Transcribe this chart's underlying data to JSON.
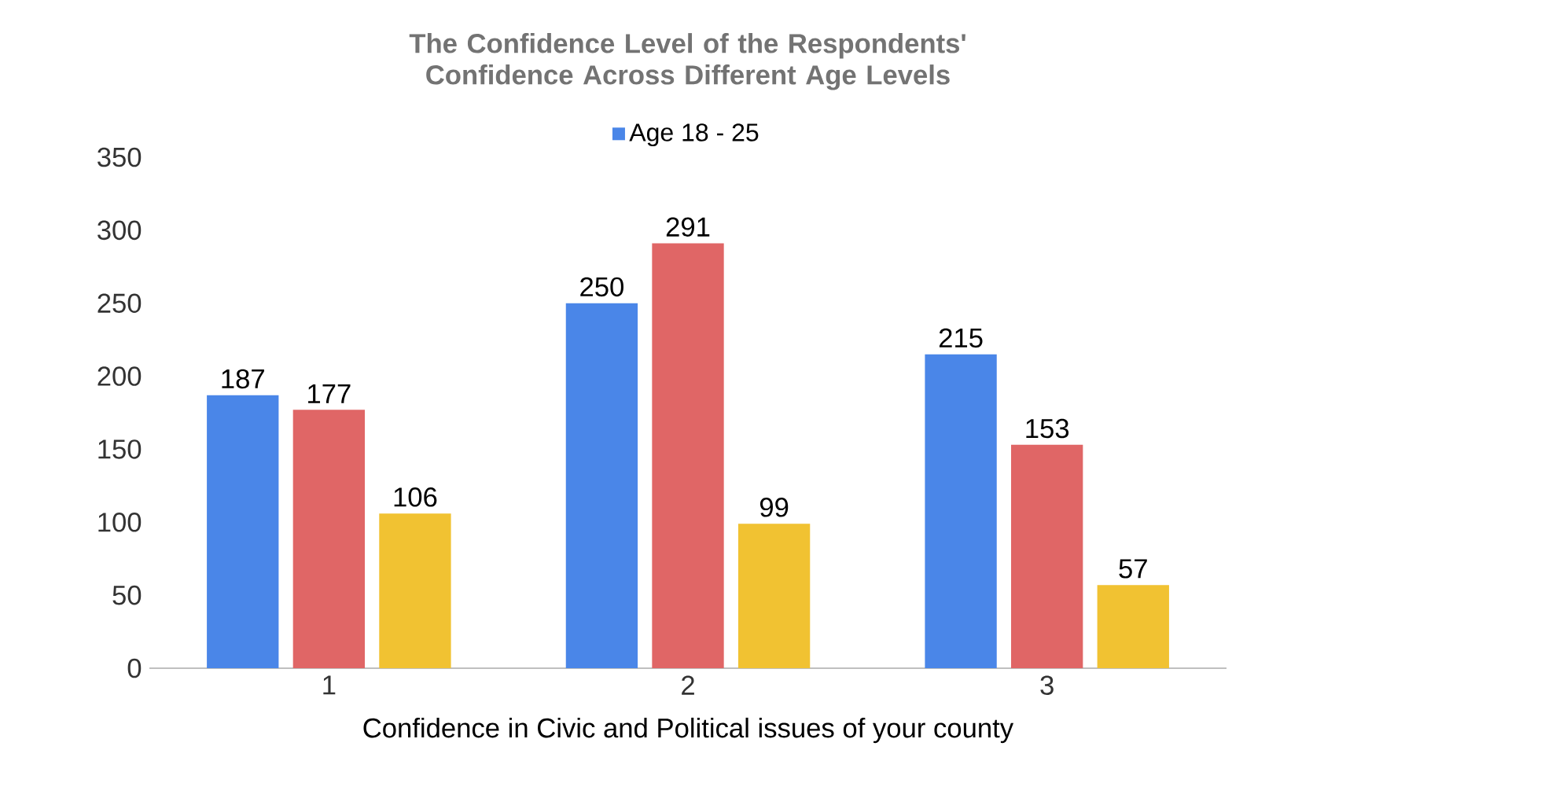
{
  "chart_data": {
    "type": "bar",
    "title": "The Confidence Level of the Respondents' Confidence Across Different Age Levels",
    "xlabel": "Confidence in Civic and Political issues of your county",
    "categories": [
      "1",
      "2",
      "3"
    ],
    "series": [
      {
        "name": "Age 18 - 25",
        "color": "#4a86e8",
        "values": [
          187,
          250,
          215
        ]
      },
      {
        "color": "#e06666",
        "values": [
          177,
          291,
          153
        ]
      },
      {
        "color": "#f1c232",
        "values": [
          106,
          99,
          57
        ]
      }
    ],
    "ylim": [
      0,
      350
    ],
    "yticks": [
      0,
      50,
      100,
      150,
      200,
      250,
      300,
      350
    ],
    "data_labels": true,
    "legend": "top",
    "grid": false
  }
}
